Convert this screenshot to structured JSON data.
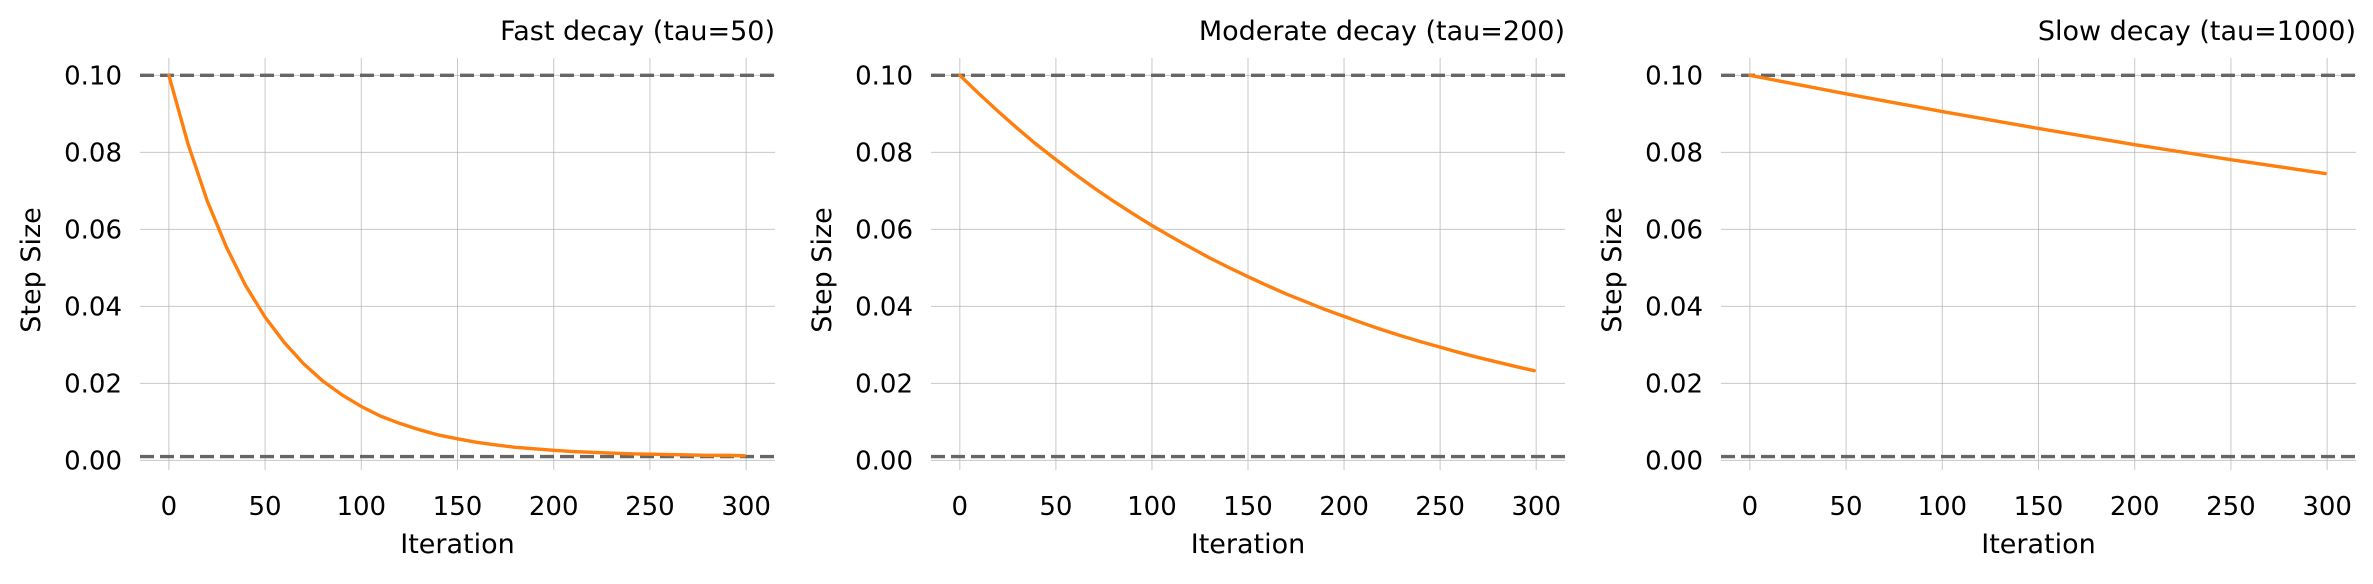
{
  "chart_data": [
    {
      "type": "line",
      "title": "Fast decay (tau=50)",
      "xlabel": "Iteration",
      "ylabel": "Step Size",
      "xlim": [
        -15,
        315
      ],
      "ylim": [
        -0.0025,
        0.1045
      ],
      "xticks": [
        0,
        50,
        100,
        150,
        200,
        250,
        300
      ],
      "xtick_labels": [
        "0",
        "50",
        "100",
        "150",
        "200",
        "250",
        "300"
      ],
      "yticks": [
        0.0,
        0.02,
        0.04,
        0.06,
        0.08,
        0.1
      ],
      "ytick_labels": [
        "0.00",
        "0.02",
        "0.04",
        "0.06",
        "0.08",
        "0.10"
      ],
      "grid": true,
      "hlines": [
        0.1,
        0.001
      ],
      "hline_color": "#666666",
      "series_color": "#ff7f0e",
      "series": [
        {
          "x": [
            0,
            10,
            20,
            30,
            40,
            50,
            60,
            70,
            80,
            90,
            100,
            110,
            120,
            130,
            140,
            150,
            160,
            170,
            180,
            190,
            200,
            210,
            220,
            230,
            240,
            250,
            260,
            270,
            280,
            290,
            299
          ],
          "y": [
            0.1,
            0.0821,
            0.0673,
            0.0553,
            0.0453,
            0.0372,
            0.0306,
            0.0251,
            0.0206,
            0.017,
            0.014,
            0.0115,
            0.0096,
            0.008,
            0.0066,
            0.0056,
            0.0047,
            0.004,
            0.0034,
            0.003,
            0.0026,
            0.0023,
            0.0021,
            0.0019,
            0.0017,
            0.0016,
            0.0015,
            0.0014,
            0.0013,
            0.0013,
            0.0012
          ]
        }
      ]
    },
    {
      "type": "line",
      "title": "Moderate decay (tau=200)",
      "xlabel": "Iteration",
      "ylabel": "Step Size",
      "xlim": [
        -15,
        315
      ],
      "ylim": [
        -0.0025,
        0.1045
      ],
      "xticks": [
        0,
        50,
        100,
        150,
        200,
        250,
        300
      ],
      "xtick_labels": [
        "0",
        "50",
        "100",
        "150",
        "200",
        "250",
        "300"
      ],
      "yticks": [
        0.0,
        0.02,
        0.04,
        0.06,
        0.08,
        0.1
      ],
      "ytick_labels": [
        "0.00",
        "0.02",
        "0.04",
        "0.06",
        "0.08",
        "0.10"
      ],
      "grid": true,
      "hlines": [
        0.1,
        0.001
      ],
      "hline_color": "#666666",
      "series_color": "#ff7f0e",
      "series": [
        {
          "x": [
            0,
            10,
            20,
            30,
            40,
            50,
            60,
            70,
            80,
            90,
            100,
            110,
            120,
            130,
            140,
            150,
            160,
            170,
            180,
            190,
            200,
            210,
            220,
            230,
            240,
            250,
            260,
            270,
            280,
            290,
            299
          ],
          "y": [
            0.1,
            0.0952,
            0.0906,
            0.0862,
            0.082,
            0.0781,
            0.0743,
            0.0707,
            0.0673,
            0.0641,
            0.061,
            0.0581,
            0.0553,
            0.0526,
            0.0501,
            0.0477,
            0.0454,
            0.0432,
            0.0412,
            0.0392,
            0.0374,
            0.0356,
            0.0339,
            0.0323,
            0.0308,
            0.0294,
            0.028,
            0.0267,
            0.0255,
            0.0243,
            0.0233
          ]
        }
      ]
    },
    {
      "type": "line",
      "title": "Slow decay (tau=1000)",
      "xlabel": "Iteration",
      "ylabel": "Step Size",
      "xlim": [
        -15,
        315
      ],
      "ylim": [
        -0.0025,
        0.1045
      ],
      "xticks": [
        0,
        50,
        100,
        150,
        200,
        250,
        300
      ],
      "xtick_labels": [
        "0",
        "50",
        "100",
        "150",
        "200",
        "250",
        "300"
      ],
      "yticks": [
        0.0,
        0.02,
        0.04,
        0.06,
        0.08,
        0.1
      ],
      "ytick_labels": [
        "0.00",
        "0.02",
        "0.04",
        "0.06",
        "0.08",
        "0.10"
      ],
      "grid": true,
      "hlines": [
        0.1,
        0.001
      ],
      "hline_color": "#666666",
      "series_color": "#ff7f0e",
      "series": [
        {
          "x": [
            0,
            50,
            100,
            150,
            200,
            250,
            299
          ],
          "y": [
            0.1,
            0.0952,
            0.0906,
            0.0862,
            0.082,
            0.0781,
            0.0745
          ]
        }
      ]
    }
  ]
}
